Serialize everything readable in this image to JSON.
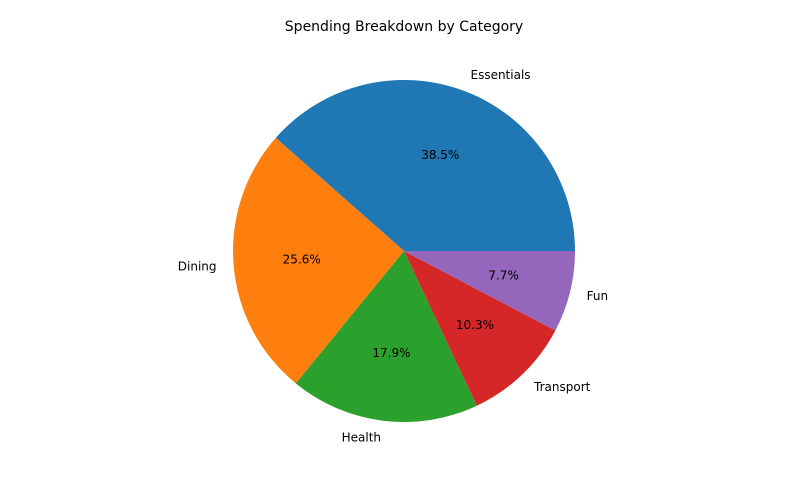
{
  "chart_data": {
    "type": "pie",
    "title": "Spending Breakdown by Category",
    "categories": [
      "Essentials",
      "Dining",
      "Health",
      "Transport",
      "Fun"
    ],
    "values": [
      38.5,
      25.6,
      17.9,
      10.3,
      7.7
    ],
    "percent_labels": [
      "38.5%",
      "25.6%",
      "17.9%",
      "10.3%",
      "7.7%"
    ],
    "colors": [
      "#1f77b4",
      "#ff7f0e",
      "#2ca02c",
      "#d62728",
      "#9467bd"
    ],
    "start_angle_deg": 0,
    "direction": "counterclockwise",
    "legend": "none"
  }
}
